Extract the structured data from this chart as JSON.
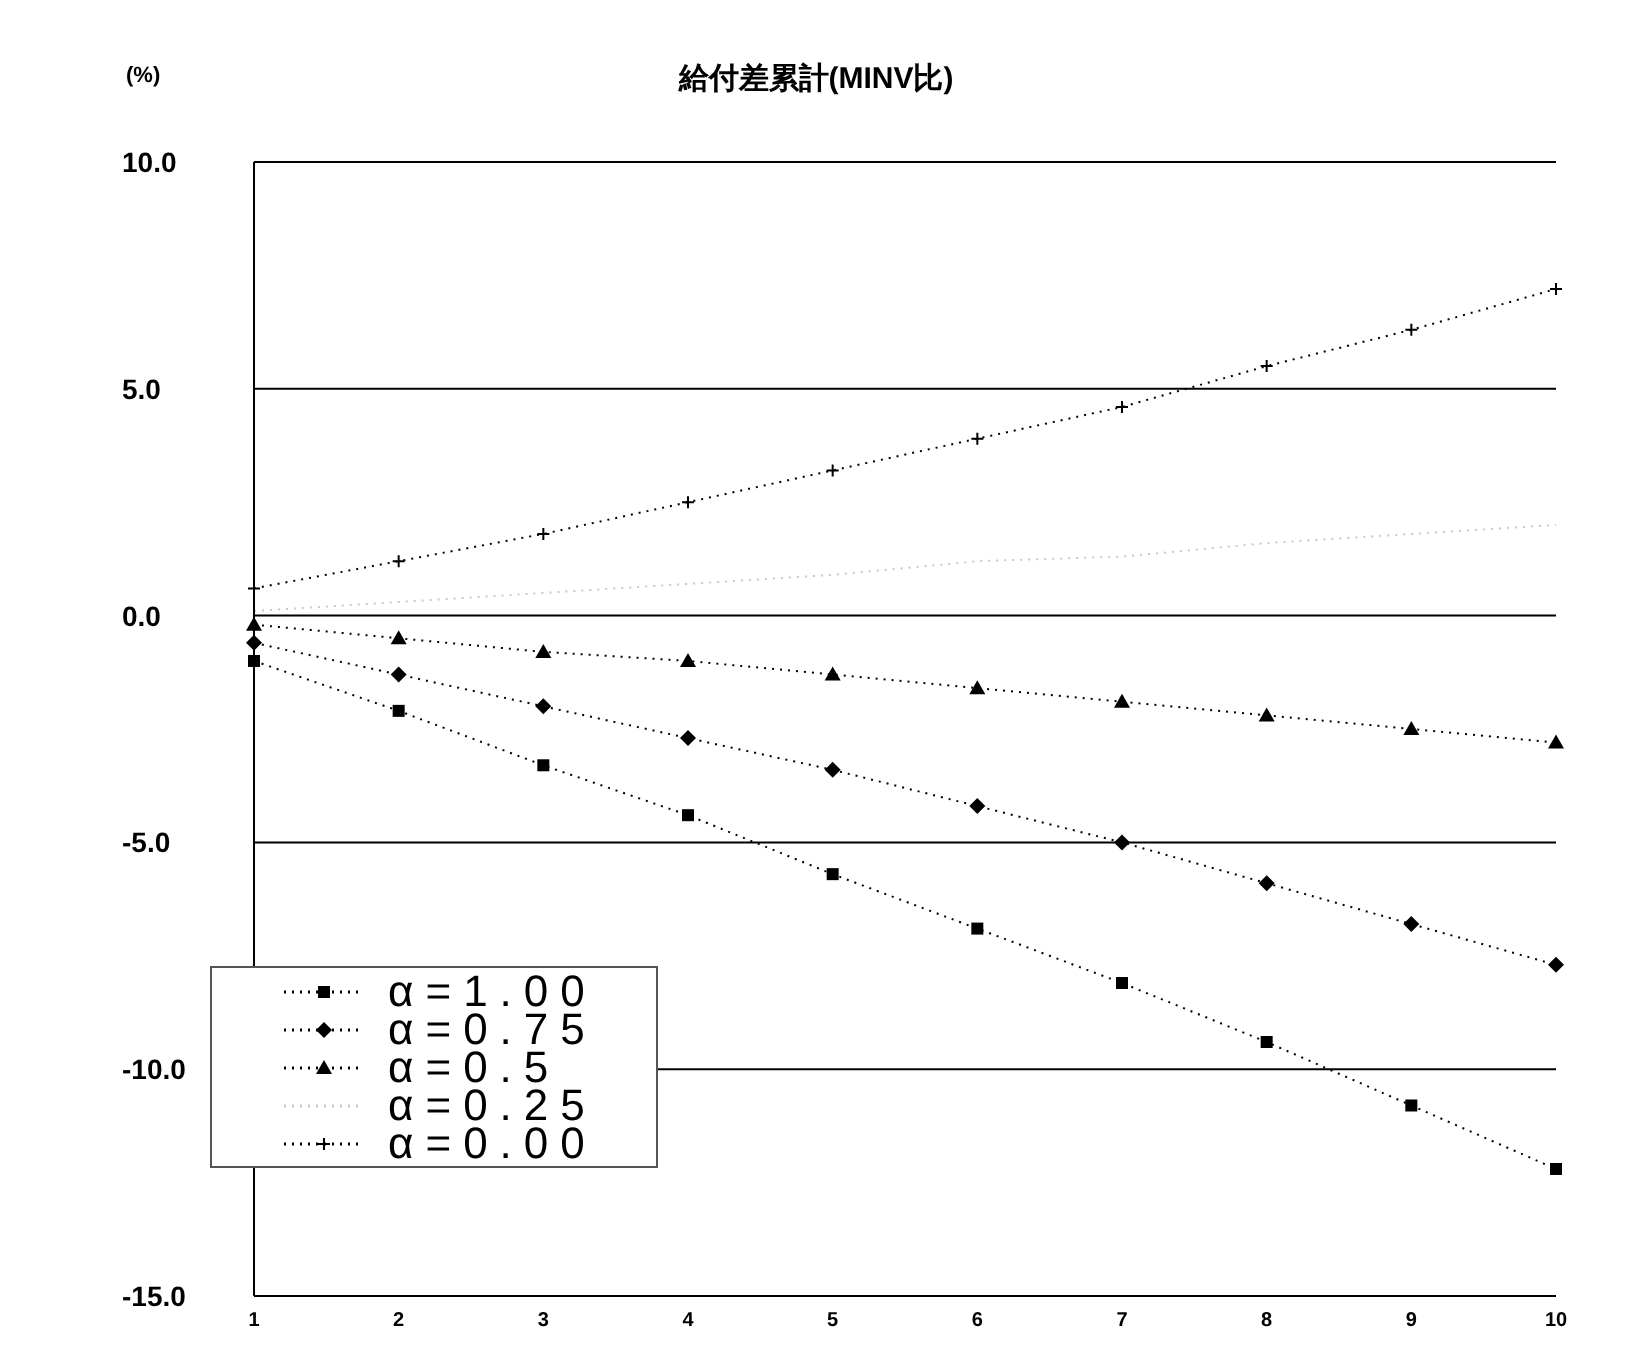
{
  "chart_data": {
    "type": "line",
    "title": "給付差累計(MINV比)",
    "ylabel": "(%)",
    "categories": [
      "1",
      "2",
      "3",
      "4",
      "5",
      "6",
      "7",
      "8",
      "9",
      "10"
    ],
    "series": [
      {
        "name": "α=1.00",
        "color": "#000000",
        "marker": "square",
        "values": [
          -1.0,
          -2.1,
          -3.3,
          -4.4,
          -5.7,
          -6.9,
          -8.1,
          -9.4,
          -10.8,
          -12.2
        ]
      },
      {
        "name": "α=0.75",
        "color": "#000000",
        "marker": "diamond",
        "values": [
          -0.6,
          -1.3,
          -2.0,
          -2.7,
          -3.4,
          -4.2,
          -5.0,
          -5.9,
          -6.8,
          -7.7
        ]
      },
      {
        "name": "α=0.5",
        "color": "#000000",
        "marker": "triangle",
        "values": [
          -0.2,
          -0.5,
          -0.8,
          -1.0,
          -1.3,
          -1.6,
          -1.9,
          -2.2,
          -2.5,
          -2.8
        ]
      },
      {
        "name": "α=0.25",
        "color": "#c8c8c8",
        "marker": "none",
        "values": [
          0.1,
          0.3,
          0.5,
          0.7,
          0.9,
          1.2,
          1.3,
          1.6,
          1.8,
          2.0
        ]
      },
      {
        "name": "α=0.00",
        "color": "#000000",
        "marker": "cross",
        "values": [
          0.6,
          1.2,
          1.8,
          2.5,
          3.2,
          3.9,
          4.6,
          5.5,
          6.3,
          7.2
        ]
      }
    ],
    "ylim": [
      -15,
      10
    ],
    "yticks": [
      {
        "value": -15,
        "label": "-15.0"
      },
      {
        "value": -10,
        "label": "-10.0"
      },
      {
        "value": -5,
        "label": "-5.0"
      },
      {
        "value": 0,
        "label": "0.0"
      },
      {
        "value": 5,
        "label": "5.0"
      },
      {
        "value": 10,
        "label": "10.0"
      }
    ],
    "grid": "y",
    "legend": "bottom left",
    "line_style": "dotted"
  }
}
